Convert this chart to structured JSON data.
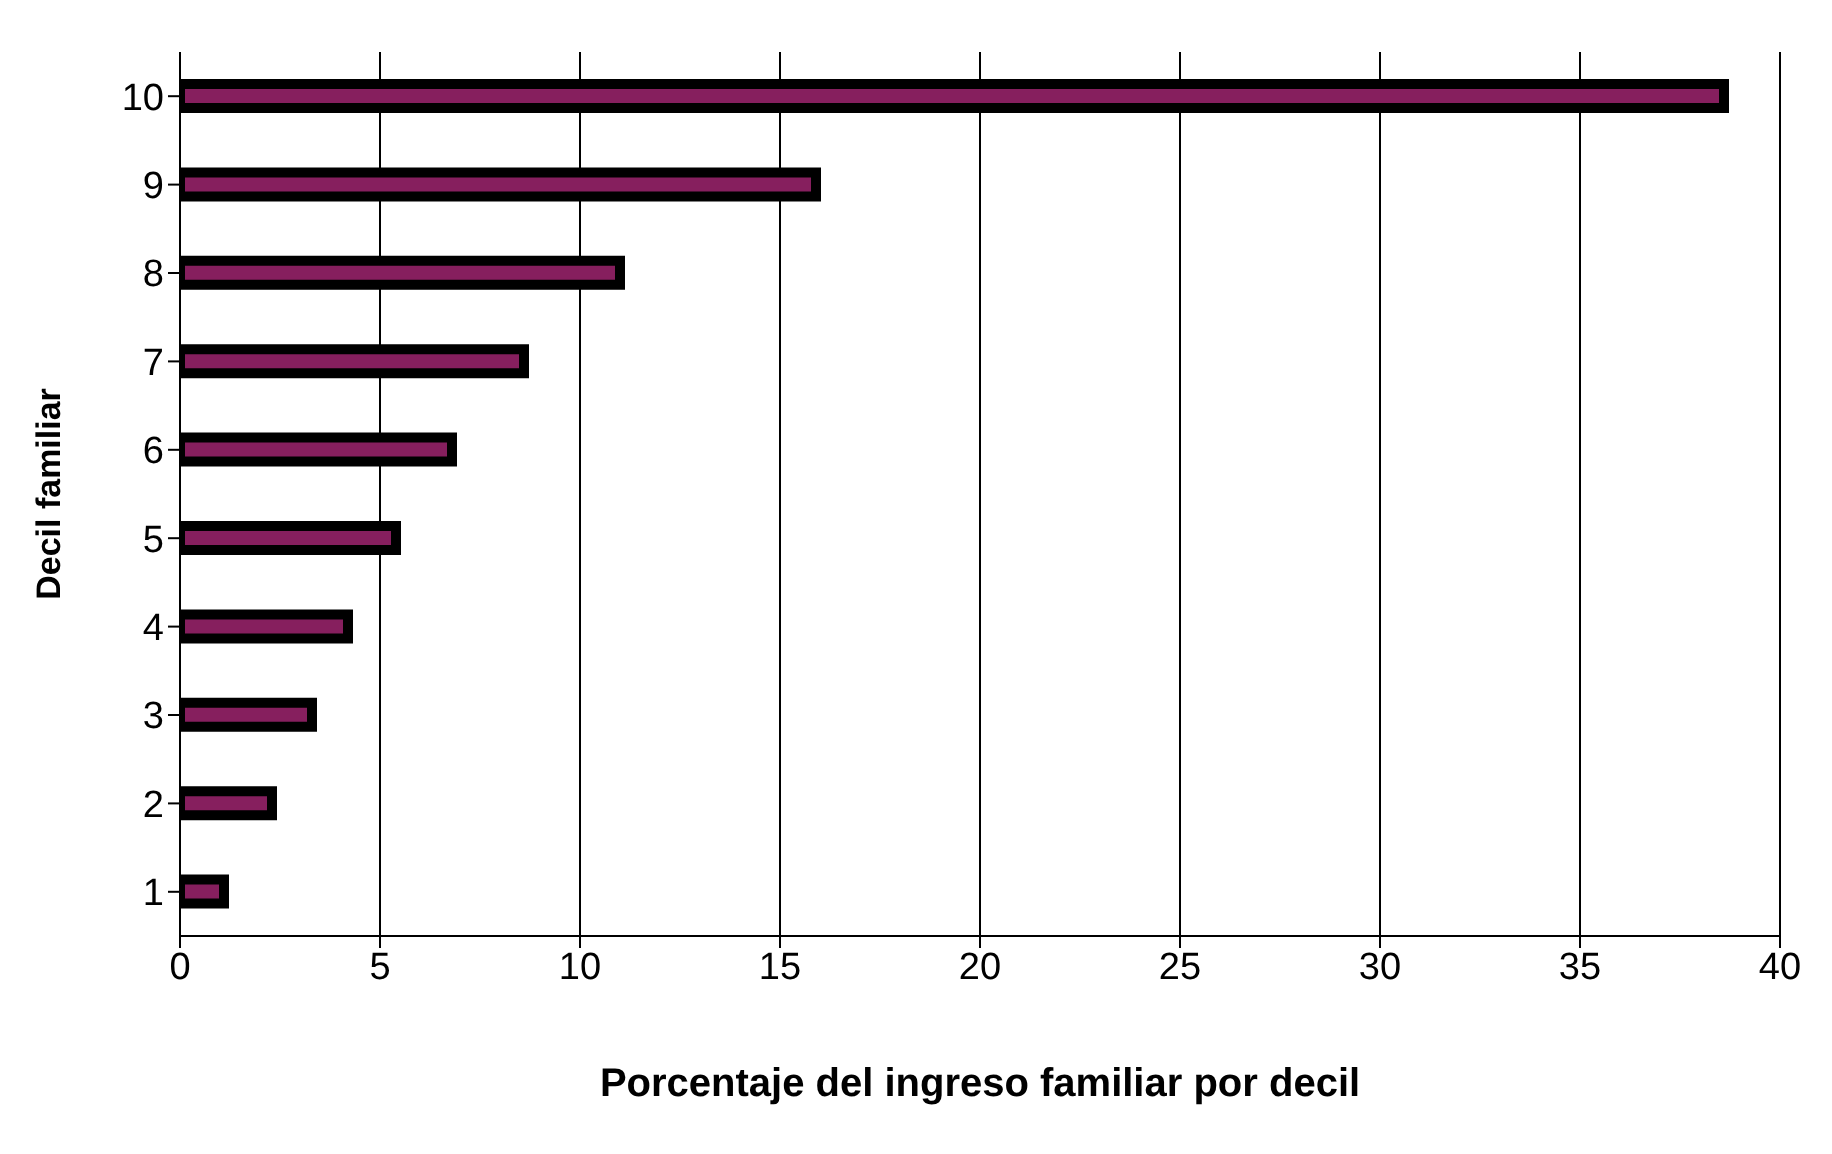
{
  "chart_data": {
    "type": "bar",
    "orientation": "horizontal",
    "xlabel": "Porcentaje del ingreso familiar por decil",
    "ylabel": "Decil familiar",
    "categories": [
      "10",
      "9",
      "8",
      "7",
      "6",
      "5",
      "4",
      "3",
      "2",
      "1"
    ],
    "values": [
      38.6,
      15.9,
      11.0,
      8.6,
      6.8,
      5.4,
      4.2,
      3.3,
      2.3,
      1.1
    ],
    "color": "#861f5e",
    "xlim": [
      0,
      40
    ],
    "xticks": [
      0,
      5,
      10,
      15,
      20,
      25,
      30,
      35,
      40
    ],
    "grid": "x"
  }
}
